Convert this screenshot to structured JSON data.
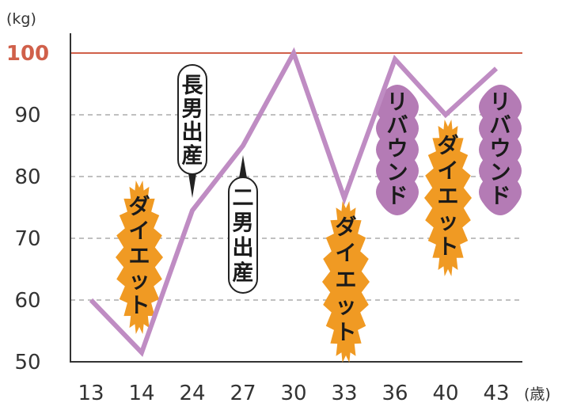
{
  "chart_data": {
    "type": "line",
    "y_unit": "(kg)",
    "x_unit": "(歳)",
    "x": [
      "13",
      "14",
      "24",
      "27",
      "30",
      "33",
      "36",
      "40",
      "43"
    ],
    "y": [
      60,
      51.5,
      74.5,
      85,
      100,
      76.5,
      99,
      90,
      97.5
    ],
    "ylim": [
      50,
      100
    ],
    "yticks": [
      50,
      60,
      70,
      80,
      90,
      100
    ],
    "highlight_ytick": 100,
    "grid": "horizontal-dashed",
    "colors": {
      "line": "#bf8cc3",
      "diet": "#f09a23",
      "rebound": "#b47bb5",
      "top_line": "#d0604a"
    },
    "annotations": [
      {
        "text": "ダイエット",
        "kind": "diet",
        "at_x": "14"
      },
      {
        "text": "長男出産",
        "kind": "birth",
        "at_x": "24"
      },
      {
        "text": "二男出産",
        "kind": "birth",
        "at_x": "27"
      },
      {
        "text": "ダイエット",
        "kind": "diet",
        "at_x": "33"
      },
      {
        "text": "リバウンド",
        "kind": "rebound",
        "at_x": "36"
      },
      {
        "text": "ダイエット",
        "kind": "diet",
        "at_x": "40"
      },
      {
        "text": "リバウンド",
        "kind": "rebound",
        "at_x": "43"
      }
    ]
  }
}
